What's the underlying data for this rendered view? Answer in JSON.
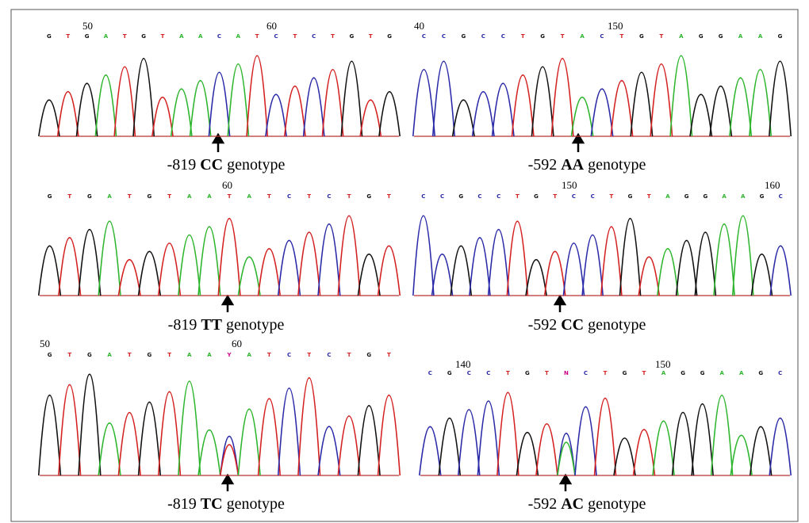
{
  "panels": [
    {
      "position_labels": [
        "50",
        "60"
      ],
      "bases": [
        "G",
        "T",
        "G",
        "A",
        "T",
        "G",
        "T",
        "A",
        "A",
        "C",
        "A",
        "T",
        "C",
        "T",
        "C",
        "T",
        "G",
        "T",
        "G"
      ],
      "caption": {
        "locus": "-819",
        "genotype": "CC",
        "suffix": "genotype"
      }
    },
    {
      "position_labels": [
        "40",
        "150"
      ],
      "bases": [
        "C",
        "C",
        "G",
        "C",
        "C",
        "T",
        "G",
        "T",
        "A",
        "C",
        "T",
        "G",
        "T",
        "A",
        "G",
        "G",
        "A",
        "A",
        "G"
      ],
      "caption": {
        "locus": "-592",
        "genotype": "AA",
        "suffix": "genotype"
      }
    },
    {
      "position_labels": [
        "60"
      ],
      "bases": [
        "G",
        "T",
        "G",
        "A",
        "T",
        "G",
        "T",
        "A",
        "A",
        "T",
        "A",
        "T",
        "C",
        "T",
        "C",
        "T",
        "G",
        "T"
      ],
      "caption": {
        "locus": "-819",
        "genotype": "TT",
        "suffix": "genotype"
      }
    },
    {
      "position_labels": [
        "150",
        "160"
      ],
      "bases": [
        "C",
        "C",
        "G",
        "C",
        "C",
        "T",
        "G",
        "T",
        "C",
        "C",
        "T",
        "G",
        "T",
        "A",
        "G",
        "G",
        "A",
        "A",
        "G",
        "C"
      ],
      "caption": {
        "locus": "-592",
        "genotype": "CC",
        "suffix": "genotype"
      }
    },
    {
      "position_labels": [
        "50",
        "60"
      ],
      "bases": [
        "G",
        "T",
        "G",
        "A",
        "T",
        "G",
        "T",
        "A",
        "A",
        "Y",
        "A",
        "T",
        "C",
        "T",
        "C",
        "T",
        "G",
        "T"
      ],
      "caption": {
        "locus": "-819",
        "genotype": "TC",
        "suffix": "genotype"
      }
    },
    {
      "position_labels": [
        "140",
        "150"
      ],
      "bases": [
        "C",
        "G",
        "C",
        "C",
        "T",
        "G",
        "T",
        "N",
        "C",
        "T",
        "G",
        "T",
        "A",
        "G",
        "G",
        "A",
        "A",
        "G",
        "C"
      ],
      "caption": {
        "locus": "-592",
        "genotype": "AC",
        "suffix": "genotype"
      }
    }
  ]
}
